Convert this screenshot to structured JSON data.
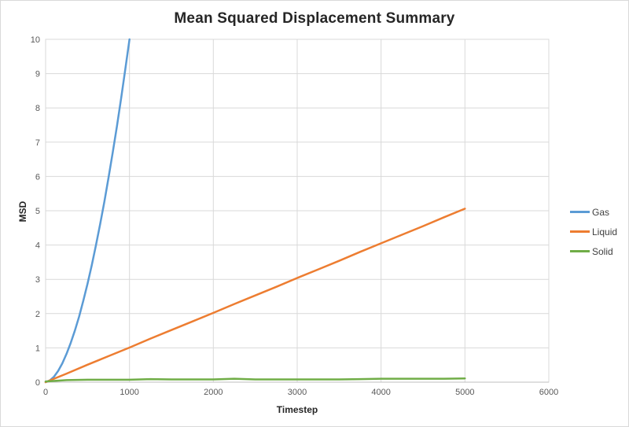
{
  "chart_data": {
    "type": "line",
    "title": "Mean Squared Displacement Summary",
    "xlabel": "Timestep",
    "ylabel": "MSD",
    "xlim": [
      0,
      6000
    ],
    "ylim": [
      0,
      10
    ],
    "x_ticks": [
      0,
      1000,
      2000,
      3000,
      4000,
      5000,
      6000
    ],
    "y_ticks": [
      0,
      1,
      2,
      3,
      4,
      5,
      6,
      7,
      8,
      9,
      10
    ],
    "grid": true,
    "legend_position": "right",
    "series": [
      {
        "name": "Gas",
        "color": "#5B9BD5",
        "x": [
          0,
          50,
          100,
          150,
          200,
          250,
          300,
          350,
          400,
          450,
          500,
          550,
          600,
          650,
          700,
          750,
          800,
          850,
          900,
          950,
          1000
        ],
        "y": [
          0,
          0.05,
          0.16,
          0.33,
          0.55,
          0.83,
          1.15,
          1.51,
          1.92,
          2.38,
          2.87,
          3.41,
          3.99,
          4.6,
          5.26,
          5.96,
          6.69,
          7.46,
          8.27,
          9.12,
          10
        ]
      },
      {
        "name": "Liquid",
        "color": "#ED7D31",
        "x": [
          0,
          250,
          500,
          750,
          1000,
          1250,
          1500,
          1750,
          2000,
          2250,
          2500,
          2750,
          3000,
          3250,
          3500,
          3750,
          4000,
          4250,
          4500,
          4750,
          5000
        ],
        "y": [
          0,
          0.25,
          0.51,
          0.76,
          1.01,
          1.27,
          1.52,
          1.77,
          2.02,
          2.28,
          2.53,
          2.78,
          3.04,
          3.29,
          3.54,
          3.8,
          4.05,
          4.3,
          4.55,
          4.81,
          5.06
        ]
      },
      {
        "name": "Solid",
        "color": "#70AD47",
        "x": [
          0,
          250,
          500,
          750,
          1000,
          1250,
          1500,
          1750,
          2000,
          2250,
          2500,
          2750,
          3000,
          3250,
          3500,
          3750,
          4000,
          4250,
          4500,
          4750,
          5000
        ],
        "y": [
          0.02,
          0.06,
          0.07,
          0.07,
          0.07,
          0.09,
          0.08,
          0.08,
          0.08,
          0.1,
          0.08,
          0.08,
          0.08,
          0.08,
          0.08,
          0.09,
          0.1,
          0.1,
          0.1,
          0.1,
          0.11
        ]
      }
    ]
  },
  "styles": {
    "gridline_color": "#D9D9D9",
    "plot_border_color": "#D9D9D9",
    "axis_line_color": "#BFBFBF",
    "tick_label_color": "#595959",
    "title_color": "#262626",
    "axis_title_color": "#262626",
    "legend_text_color": "#404040",
    "frame_border_color": "#D9D9D9",
    "background_color": "#FFFFFF"
  }
}
